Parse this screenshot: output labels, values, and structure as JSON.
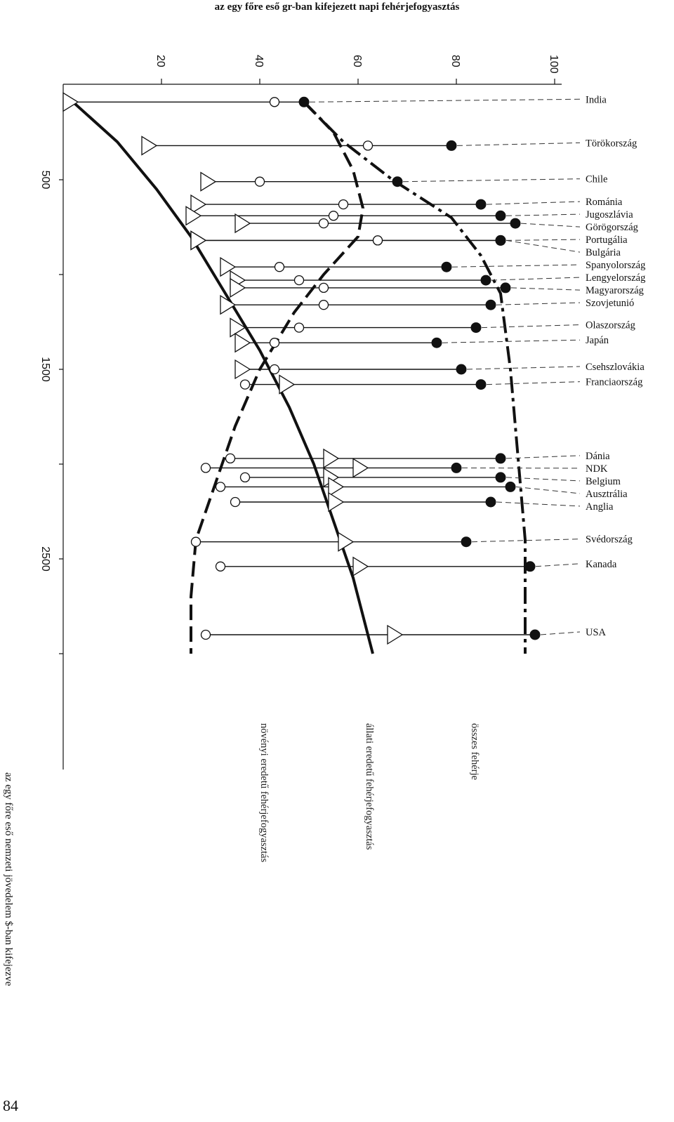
{
  "page_number": "84",
  "chart_data": {
    "type": "scatter",
    "title": "az egy főre eső gr-ban kifejezett napi fehérjefogyasztás",
    "xlabel": "az egy főre eső nemzeti jövedelem $-ban kifejezve",
    "x_ticks": [
      "500",
      "1500",
      "2500"
    ],
    "y_ticks": [
      "20",
      "40",
      "60",
      "80",
      "100"
    ],
    "xlim": [
      0,
      3100
    ],
    "ylim": [
      0,
      100
    ],
    "series": [
      {
        "name": "növényi eredetű fehérjefogyasztás",
        "marker": "circle-open",
        "curve": "dashed"
      },
      {
        "name": "állati eredetű fehérjefogyasztás",
        "marker": "triangle-open",
        "curve": "solid"
      },
      {
        "name": "összes fehérje",
        "marker": "circle-filled",
        "curve": "dashdot"
      }
    ],
    "countries": [
      {
        "name": "India",
        "income": 90,
        "plant": 43,
        "animal": 2,
        "total": 49
      },
      {
        "name": "Törökország",
        "income": 320,
        "plant": 62,
        "animal": 18,
        "total": 79
      },
      {
        "name": "Chile",
        "income": 510,
        "plant": 40,
        "animal": 30,
        "total": 68
      },
      {
        "name": "Románia",
        "income": 630,
        "plant": 57,
        "animal": 28,
        "total": 85
      },
      {
        "name": "Jugoszlávia",
        "income": 690,
        "plant": 55,
        "animal": 27,
        "total": 89
      },
      {
        "name": "Görögország",
        "income": 730,
        "plant": 53,
        "animal": 37,
        "total": 92
      },
      {
        "name": "Portugália",
        "income": 820,
        "plant": 64,
        "animal": 28,
        "total": 89
      },
      {
        "name": "Bulgária",
        "income": 820,
        "plant": 64,
        "animal": 28,
        "total": 89
      },
      {
        "name": "Spanyolország",
        "income": 960,
        "plant": 44,
        "animal": 34,
        "total": 78
      },
      {
        "name": "Lengyelország",
        "income": 1030,
        "plant": 48,
        "animal": 36,
        "total": 86
      },
      {
        "name": "Magyarország",
        "income": 1070,
        "plant": 53,
        "animal": 36,
        "total": 90
      },
      {
        "name": "Szovjetunió",
        "income": 1160,
        "plant": 53,
        "animal": 34,
        "total": 87
      },
      {
        "name": "Olaszország",
        "income": 1280,
        "plant": 48,
        "animal": 36,
        "total": 84
      },
      {
        "name": "Japán",
        "income": 1360,
        "plant": 43,
        "animal": 37,
        "total": 76
      },
      {
        "name": "Csehszlovákia",
        "income": 1500,
        "plant": 43,
        "animal": 37,
        "total": 81
      },
      {
        "name": "Franciaország",
        "income": 1580,
        "plant": 37,
        "animal": 46,
        "total": 85
      },
      {
        "name": "Dánia",
        "income": 1970,
        "plant": 34,
        "animal": 55,
        "total": 89
      },
      {
        "name": "NDK",
        "income": 2020,
        "plant": 29,
        "animal": 61,
        "total": 80
      },
      {
        "name": "Belgium",
        "income": 2070,
        "plant": 37,
        "animal": 55,
        "total": 89
      },
      {
        "name": "Ausztrália",
        "income": 2120,
        "plant": 32,
        "animal": 56,
        "total": 91
      },
      {
        "name": "Anglia",
        "income": 2200,
        "plant": 35,
        "animal": 56,
        "total": 87
      },
      {
        "name": "Svédország",
        "income": 2410,
        "plant": 27,
        "animal": 58,
        "total": 82
      },
      {
        "name": "Kanada",
        "income": 2540,
        "plant": 32,
        "animal": 61,
        "total": 95
      },
      {
        "name": "USA",
        "income": 2900,
        "plant": 29,
        "animal": 68,
        "total": 96
      }
    ]
  }
}
